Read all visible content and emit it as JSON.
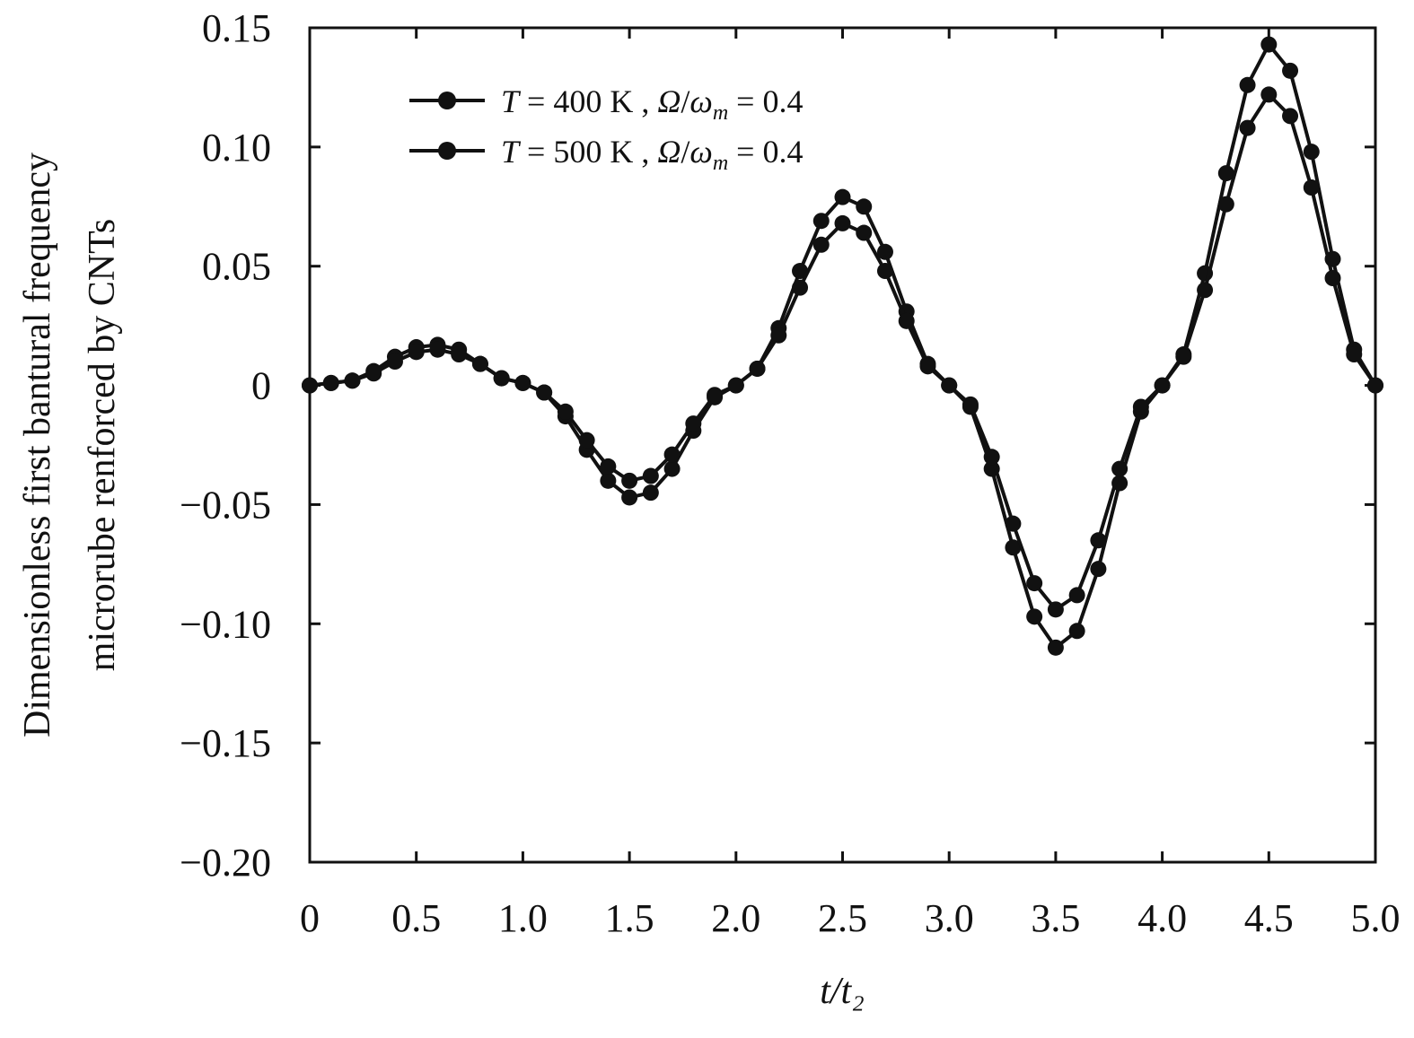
{
  "chart_data": {
    "type": "line",
    "xlabel": "t/t₂",
    "ylabel_line1": "Dimensionless first bantural frequency",
    "ylabel_line2": "microrube renforced by CNTs",
    "xlim": [
      0,
      5.0
    ],
    "ylim": [
      -0.2,
      0.15
    ],
    "xticks": [
      0,
      0.5,
      1.0,
      1.5,
      2.0,
      2.5,
      3.0,
      3.5,
      4.0,
      4.5,
      5.0
    ],
    "xtick_labels": [
      "0",
      "0.5",
      "1.0",
      "1.5",
      "2.0",
      "2.5",
      "3.0",
      "3.5",
      "4.0",
      "4.5",
      "5.0"
    ],
    "yticks": [
      0.15,
      0.1,
      0.05,
      0,
      -0.05,
      -0.1,
      -0.15,
      -0.2
    ],
    "ytick_labels": [
      "0.15",
      "0.10",
      "0.05",
      "0",
      "−0.05",
      "−0.10",
      "−0.15",
      "−0.20"
    ],
    "grid": false,
    "legend_position": "top-left",
    "x": [
      0,
      0.1,
      0.2,
      0.3,
      0.4,
      0.5,
      0.6,
      0.7,
      0.8,
      0.9,
      1.0,
      1.1,
      1.2,
      1.3,
      1.4,
      1.5,
      1.6,
      1.7,
      1.8,
      1.9,
      2.0,
      2.1,
      2.2,
      2.3,
      2.4,
      2.5,
      2.6,
      2.7,
      2.8,
      2.9,
      3.0,
      3.1,
      3.2,
      3.3,
      3.4,
      3.5,
      3.6,
      3.7,
      3.8,
      3.9,
      4.0,
      4.1,
      4.2,
      4.3,
      4.4,
      4.5,
      4.6,
      4.7,
      4.8,
      4.9,
      5.0
    ],
    "series": [
      {
        "name": "T = 400 K , Ω/ωm = 0.4",
        "legend_T": "400",
        "values": [
          0,
          0.001,
          0.002,
          0.006,
          0.012,
          0.016,
          0.017,
          0.015,
          0.009,
          0.003,
          0.001,
          -0.003,
          -0.013,
          -0.027,
          -0.04,
          -0.047,
          -0.045,
          -0.035,
          -0.019,
          -0.005,
          0.0,
          0.007,
          0.024,
          0.048,
          0.069,
          0.079,
          0.075,
          0.056,
          0.031,
          0.009,
          0.0,
          -0.009,
          -0.035,
          -0.068,
          -0.097,
          -0.11,
          -0.103,
          -0.077,
          -0.041,
          -0.011,
          0.0,
          0.013,
          0.047,
          0.089,
          0.126,
          0.143,
          0.132,
          0.098,
          0.053,
          0.015,
          0.0
        ]
      },
      {
        "name": "T = 500 K , Ω/ωm = 0.4",
        "legend_T": "500",
        "values": [
          0,
          0.001,
          0.002,
          0.005,
          0.01,
          0.014,
          0.015,
          0.013,
          0.009,
          0.003,
          0.001,
          -0.003,
          -0.011,
          -0.023,
          -0.034,
          -0.04,
          -0.038,
          -0.029,
          -0.016,
          -0.004,
          0.0,
          0.007,
          0.021,
          0.041,
          0.059,
          0.068,
          0.064,
          0.048,
          0.027,
          0.008,
          0.0,
          -0.008,
          -0.03,
          -0.058,
          -0.083,
          -0.094,
          -0.088,
          -0.065,
          -0.035,
          -0.009,
          0.0,
          0.012,
          0.04,
          0.076,
          0.108,
          0.122,
          0.113,
          0.083,
          0.045,
          0.013,
          0.0
        ]
      }
    ],
    "legend_sep": " , ",
    "legend_ratio_num": "Ω",
    "legend_ratio_den": "ω",
    "legend_ratio_sub": "m",
    "legend_value": "= 0.4",
    "legend_T_symbol": "T",
    "legend_T_unit": "K",
    "legend_eq": "="
  }
}
